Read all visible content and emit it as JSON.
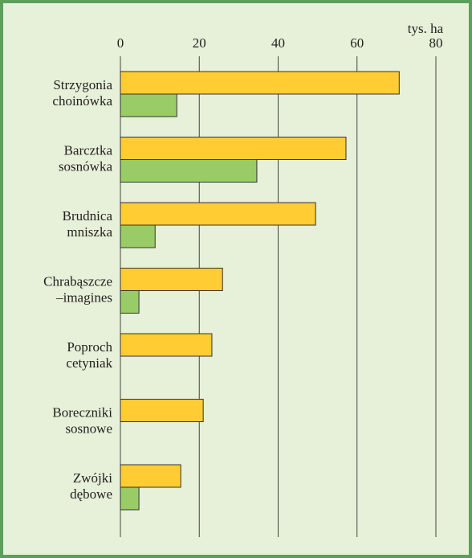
{
  "chart_data": {
    "type": "bar",
    "orientation": "horizontal",
    "x_axis_label": "tys. ha",
    "categories": [
      [
        "Strzygonia",
        "choinówka"
      ],
      [
        "Barcztka",
        "sosnówka"
      ],
      [
        "Brudnica",
        "mniszka"
      ],
      [
        "Chrabąszcze",
        "–imagines"
      ],
      [
        "Poproch",
        "cetyniak"
      ],
      [
        "Boreczniki",
        "sosnowe"
      ],
      [
        "Zwójki",
        "dębowe"
      ]
    ],
    "series": [
      {
        "color": "#ffcc33",
        "values": [
          70.7,
          57.2,
          49.5,
          25.9,
          23.2,
          21,
          15.3
        ]
      },
      {
        "color": "#99cc66",
        "values": [
          14.3,
          34.6,
          8.8,
          4.7,
          0,
          0,
          4.7
        ]
      }
    ],
    "xlim": [
      0,
      80
    ],
    "xticks": [
      0,
      20,
      40,
      60,
      80
    ],
    "grid": true
  }
}
